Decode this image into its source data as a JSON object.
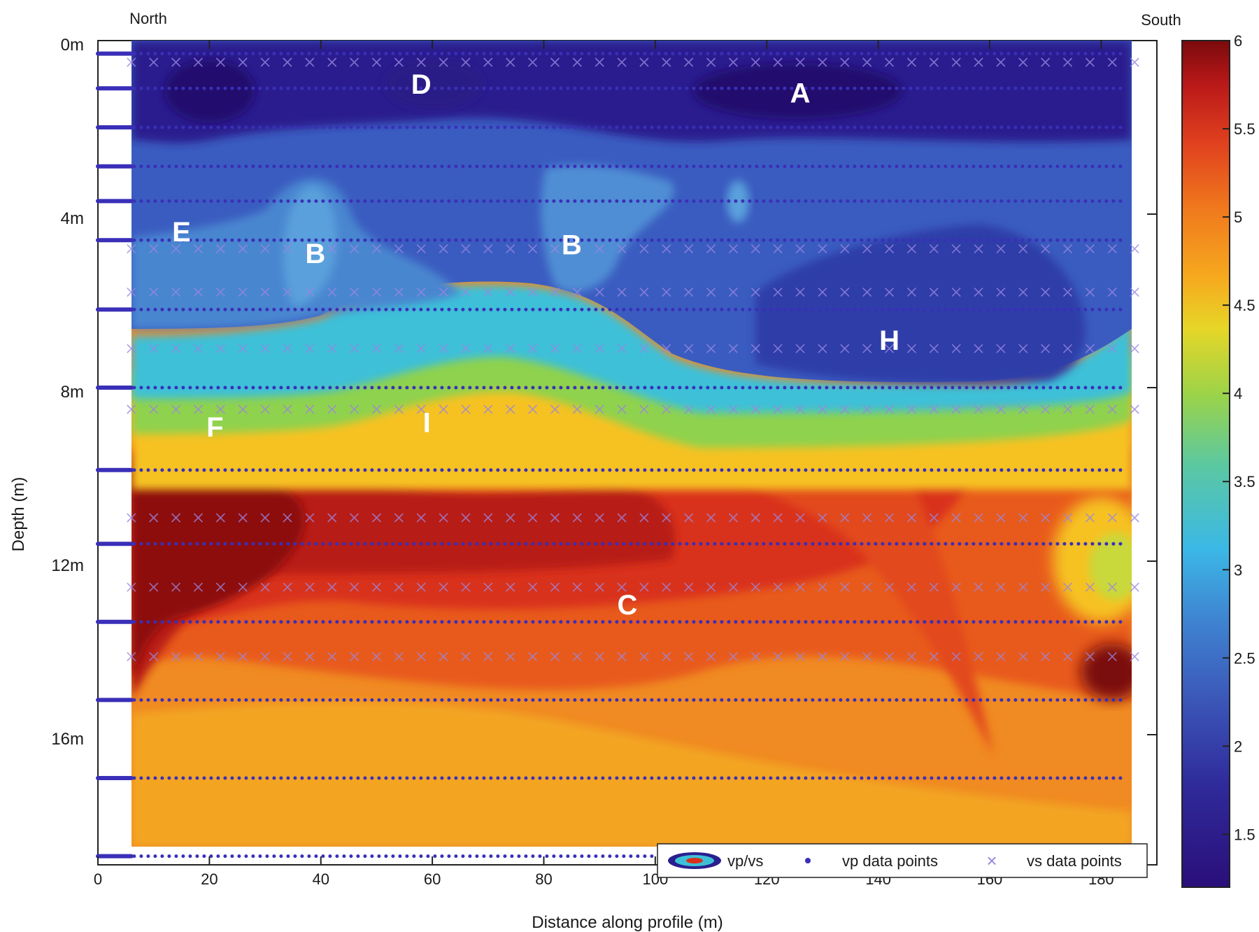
{
  "chart_data": {
    "type": "heatmap",
    "title": "",
    "xlabel": "Distance along profile (m)",
    "ylabel": "Depth (m)",
    "corner_labels": {
      "left": "North",
      "right": "South"
    },
    "xlim": [
      0,
      190
    ],
    "ylim": [
      0,
      19
    ],
    "x_ticks": [
      0,
      20,
      40,
      60,
      80,
      100,
      120,
      140,
      160,
      180
    ],
    "y_tick_labels": [
      {
        "depth": 0,
        "label": "0m"
      },
      {
        "depth": 4,
        "label": "4m"
      },
      {
        "depth": 8,
        "label": "8m"
      },
      {
        "depth": 12,
        "label": "12m"
      },
      {
        "depth": 16,
        "label": "16m"
      }
    ],
    "colorbar": {
      "min": 1.2,
      "max": 6,
      "ticks": [
        1.5,
        2,
        2.5,
        3,
        3.5,
        4,
        4.5,
        5,
        5.5,
        6
      ]
    },
    "vp_rows_depth": [
      0.3,
      1.1,
      2.0,
      2.9,
      3.7,
      4.6,
      6.2,
      8.0,
      9.9,
      11.6,
      13.4,
      15.2,
      17.0,
      18.8
    ],
    "vs_rows_depth": [
      0.5,
      4.8,
      5.8,
      7.1,
      8.5,
      11.0,
      12.6,
      14.2
    ],
    "zones": [
      {
        "label": "D",
        "x": 58,
        "depth": 1.0
      },
      {
        "label": "A",
        "x": 126,
        "depth": 1.2
      },
      {
        "label": "E",
        "x": 15,
        "depth": 4.4
      },
      {
        "label": "B",
        "x": 39,
        "depth": 4.9
      },
      {
        "label": "B",
        "x": 85,
        "depth": 4.7
      },
      {
        "label": "H",
        "x": 142,
        "depth": 6.9
      },
      {
        "label": "F",
        "x": 21,
        "depth": 8.9
      },
      {
        "label": "I",
        "x": 59,
        "depth": 8.8
      },
      {
        "label": "C",
        "x": 95,
        "depth": 13.0
      }
    ],
    "legend": {
      "placement": "bottom-right",
      "entries": [
        "vp/vs",
        "vp data points",
        "vs data points"
      ]
    }
  },
  "colors": {
    "vp_points": "#3a2fb8",
    "vs_points": "#9a86e0",
    "text": "#1a1a1a"
  }
}
